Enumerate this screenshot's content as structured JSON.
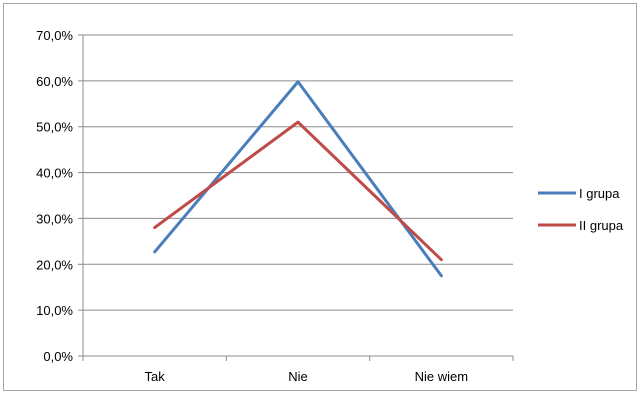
{
  "chart_data": {
    "type": "line",
    "categories": [
      "Tak",
      "Nie",
      "Nie wiem"
    ],
    "series": [
      {
        "name": "I grupa",
        "values": [
          22.7,
          59.8,
          17.5
        ],
        "color": "#4a7ebb"
      },
      {
        "name": "II grupa",
        "values": [
          28.0,
          51.0,
          21.0
        ],
        "color": "#be4b48"
      }
    ],
    "ylim": [
      0,
      70
    ],
    "ytick_values": [
      0,
      10,
      20,
      30,
      40,
      50,
      60,
      70
    ],
    "ytick_labels": [
      "0,0%",
      "10,0%",
      "20,0%",
      "30,0%",
      "40,0%",
      "50,0%",
      "60,0%",
      "70,0%"
    ],
    "grid": true,
    "legend_position": "right",
    "title": "",
    "xlabel": "",
    "ylabel": ""
  }
}
